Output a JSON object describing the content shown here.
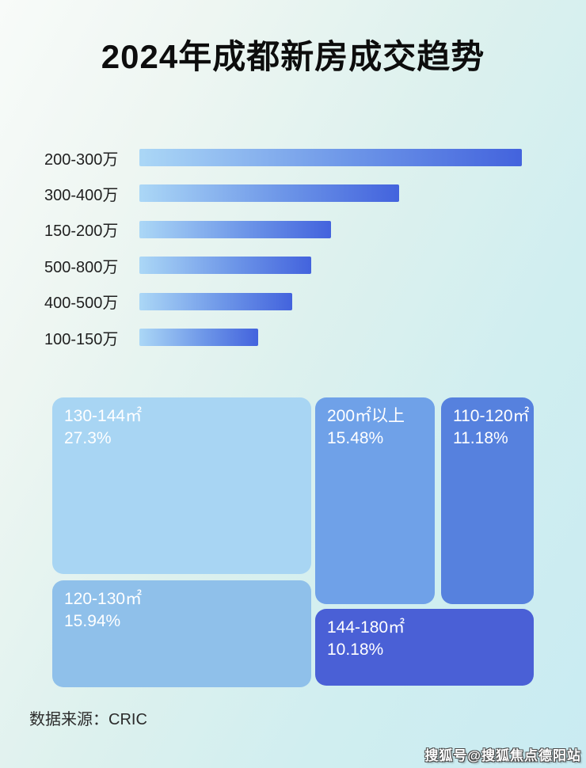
{
  "page": {
    "title": "2024年成都新房成交趋势",
    "source_label": "数据来源：CRIC",
    "watermark": "搜狐号@搜狐焦点德阳站"
  },
  "colors": {
    "background_top_left": "#f8fbf9",
    "background_bottom_right": "#c9ebf2",
    "bar_gradient_start": "#abd7f6",
    "bar_gradient_end": "#4363dd",
    "title_text": "#0d0d0d",
    "bar_label_text": "#1f1f1f",
    "treemap_text": "#ffffff",
    "source_text": "#2b2b2b"
  },
  "chart_data": [
    {
      "type": "bar",
      "orientation": "horizontal",
      "title": "",
      "categories": [
        "200-300万",
        "300-400万",
        "150-200万",
        "500-800万",
        "400-500万",
        "100-150万"
      ],
      "values_pct_of_max": [
        100,
        68,
        50,
        45,
        40,
        31
      ],
      "value_labels_shown": false,
      "axis_shown": false,
      "grid": false,
      "note": "No numeric axis shown in source; bar lengths estimated as percent of longest bar."
    },
    {
      "type": "treemap",
      "title": "",
      "items": [
        {
          "label": "130-144㎡",
          "value": "27.3%",
          "color": "#a8d5f3"
        },
        {
          "label": "120-130㎡",
          "value": "15.94%",
          "color": "#8fc0ea"
        },
        {
          "label": "200㎡以上",
          "value": "15.48%",
          "color": "#6fa1e8"
        },
        {
          "label": "110-120㎡",
          "value": "11.18%",
          "color": "#5681de"
        },
        {
          "label": "144-180㎡",
          "value": "10.18%",
          "color": "#4a60d6"
        }
      ]
    }
  ]
}
